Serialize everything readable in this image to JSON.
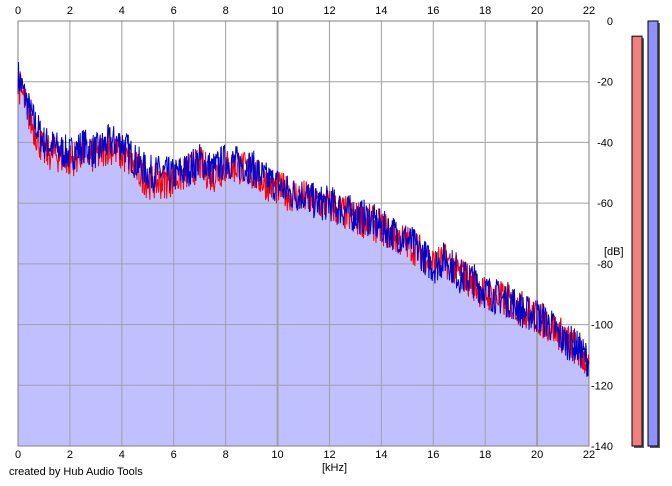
{
  "chart_data": {
    "type": "line",
    "xlabel": "[kHz]",
    "ylabel": "[dB]",
    "xlim": [
      0,
      22
    ],
    "ylim": [
      -140,
      0
    ],
    "x_ticks": [
      "0",
      "2",
      "4",
      "6",
      "8",
      "10",
      "12",
      "14",
      "16",
      "18",
      "20",
      "22"
    ],
    "y_ticks": [
      "0",
      "-20",
      "-40",
      "-60",
      "-80",
      "-100",
      "-120",
      "-140"
    ],
    "grid": true,
    "legend": "none",
    "fill": "below blue series",
    "series": [
      {
        "color": "#ff0000",
        "x": [
          0,
          0.5,
          1,
          1.5,
          2,
          2.5,
          3,
          3.5,
          4,
          4.5,
          5,
          5.5,
          6,
          6.5,
          7,
          7.5,
          8,
          8.5,
          9,
          9.5,
          10,
          10.5,
          11,
          11.5,
          12,
          12.5,
          13,
          13.5,
          14,
          14.5,
          15,
          15.5,
          16,
          16.5,
          17,
          17.5,
          18,
          18.5,
          19,
          19.5,
          20,
          20.5,
          21,
          21.5,
          22
        ],
        "values": [
          -20,
          -33,
          -43,
          -44,
          -46,
          -43,
          -45,
          -41,
          -44,
          -48,
          -53,
          -53,
          -52,
          -50,
          -47,
          -51,
          -48,
          -48,
          -50,
          -53,
          -55,
          -57,
          -58,
          -60,
          -61,
          -63,
          -65,
          -66,
          -68,
          -71,
          -73,
          -76,
          -80,
          -79,
          -83,
          -86,
          -90,
          -91,
          -93,
          -95,
          -98,
          -100,
          -104,
          -108,
          -113
        ]
      },
      {
        "color": "#0000cc",
        "x": [
          0,
          0.5,
          1,
          1.5,
          2,
          2.5,
          3,
          3.5,
          4,
          4.5,
          5,
          5.5,
          6,
          6.5,
          7,
          7.5,
          8,
          8.5,
          9,
          9.5,
          10,
          10.5,
          11,
          11.5,
          12,
          12.5,
          13,
          13.5,
          14,
          14.5,
          15,
          15.5,
          16,
          16.5,
          17,
          17.5,
          18,
          18.5,
          19,
          19.5,
          20,
          20.5,
          21,
          21.5,
          22
        ],
        "values": [
          -18,
          -31,
          -40,
          -42,
          -44,
          -41,
          -43,
          -40,
          -40,
          -46,
          -50,
          -50,
          -51,
          -49,
          -46,
          -49,
          -46,
          -47,
          -48,
          -52,
          -54,
          -57,
          -57,
          -60,
          -60,
          -62,
          -64,
          -65,
          -68,
          -70,
          -72,
          -76,
          -81,
          -78,
          -84,
          -85,
          -89,
          -91,
          -92,
          -96,
          -97,
          -100,
          -105,
          -107,
          -112
        ]
      }
    ],
    "level_meters": [
      {
        "color": "#f08080",
        "value_db": -5
      },
      {
        "color": "#9090ff",
        "value_db": 0
      }
    ]
  },
  "footer": {
    "credit": "created by Hub Audio Tools"
  }
}
